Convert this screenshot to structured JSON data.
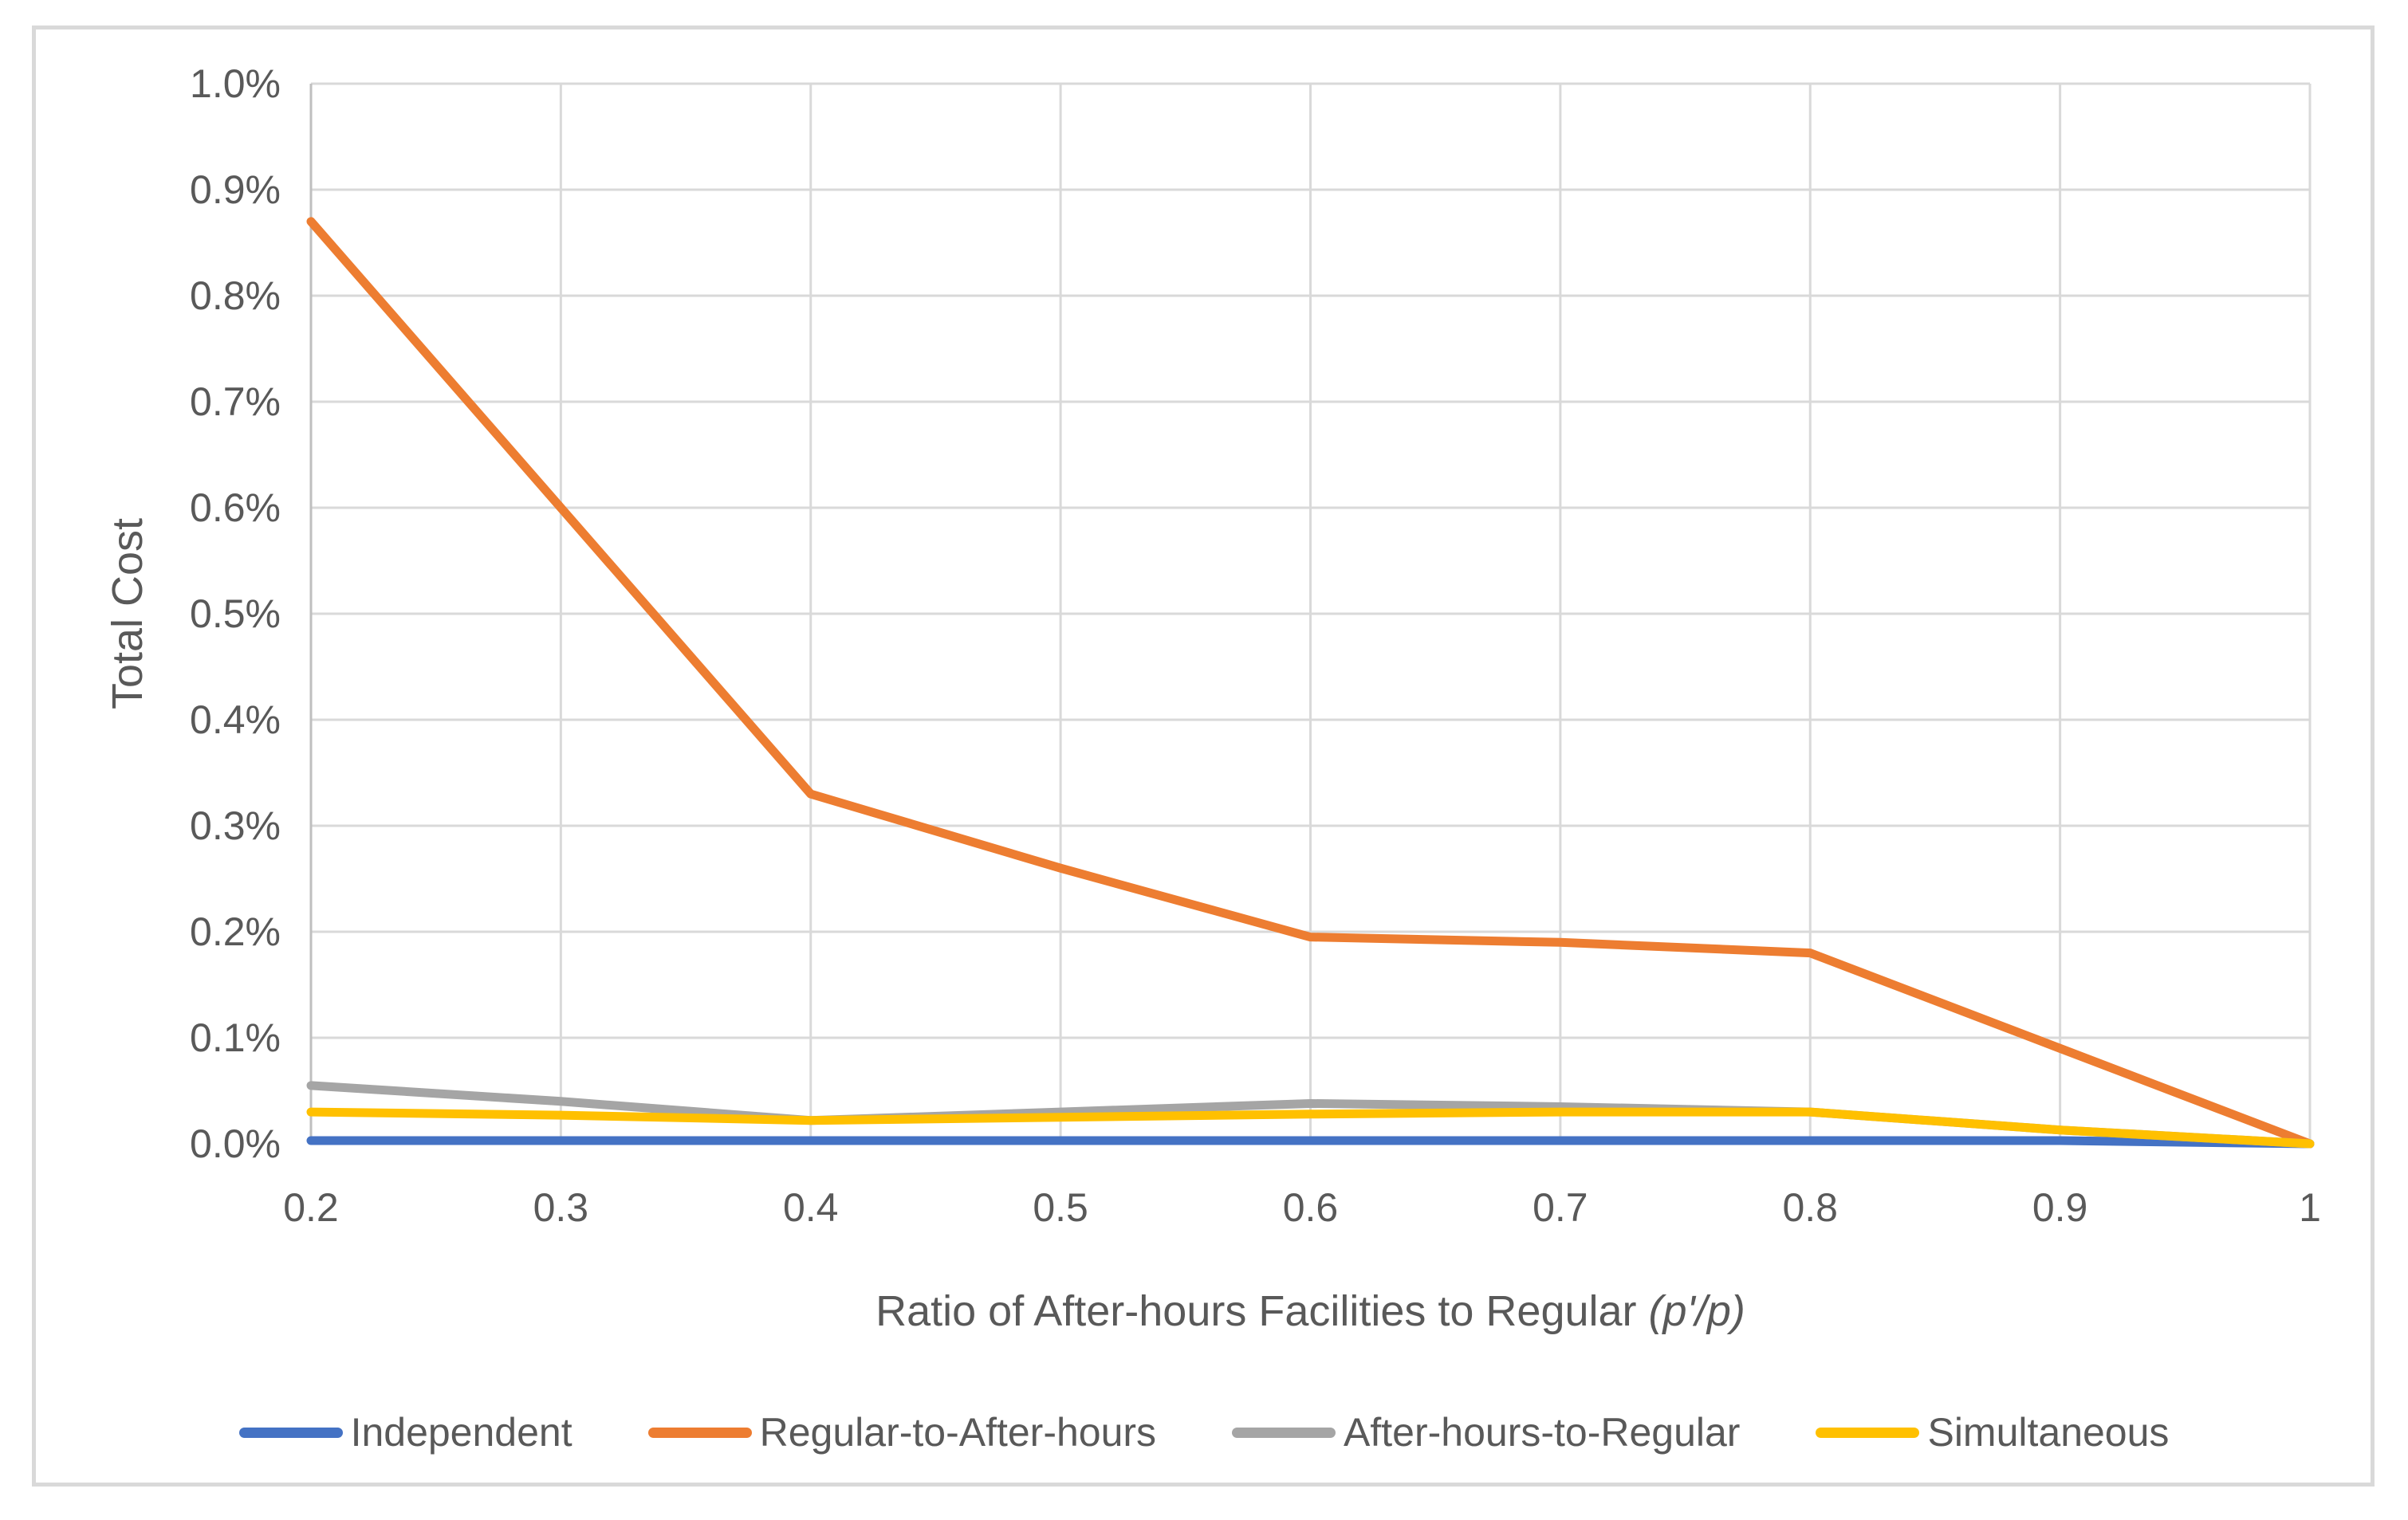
{
  "page": {
    "background_color": "#ffffff",
    "border_color": "#d9d9d9",
    "text_color": "#595959",
    "gridline_color": "#d9d9d9",
    "axis_line_color": "#bfbfbf"
  },
  "chart_data": {
    "type": "line",
    "title": "",
    "xlabel_text": "Ratio of After-hours Facilities to Regular ",
    "xlabel_math": "(p'/p)",
    "ylabel": "Total Cost",
    "x": [
      0.2,
      0.3,
      0.4,
      0.5,
      0.6,
      0.7,
      0.8,
      0.9,
      1.0
    ],
    "x_tick_labels": [
      "0.2",
      "0.3",
      "0.4",
      "0.5",
      "0.6",
      "0.7",
      "0.8",
      "0.9",
      "1"
    ],
    "y_tick_labels": [
      "0.0%",
      "0.1%",
      "0.2%",
      "0.3%",
      "0.4%",
      "0.5%",
      "0.6%",
      "0.7%",
      "0.8%",
      "0.9%",
      "1.0%"
    ],
    "xlim": [
      0.2,
      1.0
    ],
    "ylim_percent": [
      0.0,
      1.0
    ],
    "grid": true,
    "legend_position": "bottom",
    "series": [
      {
        "name": "Independent",
        "color": "#4472C4",
        "values_percent": [
          0.003,
          0.003,
          0.003,
          0.003,
          0.003,
          0.003,
          0.003,
          0.003,
          0.0
        ]
      },
      {
        "name": "Regular-to-After-hours",
        "color": "#ED7D31",
        "values_percent": [
          0.87,
          0.6,
          0.33,
          0.26,
          0.195,
          0.19,
          0.18,
          0.09,
          0.0
        ]
      },
      {
        "name": "After-hours-to-Regular",
        "color": "#A5A5A5",
        "values_percent": [
          0.055,
          0.04,
          0.022,
          0.03,
          0.038,
          0.035,
          0.03,
          0.013,
          0.0
        ]
      },
      {
        "name": "Simultaneous",
        "color": "#FFC000",
        "values_percent": [
          0.03,
          0.027,
          0.022,
          0.025,
          0.028,
          0.03,
          0.03,
          0.013,
          0.0
        ]
      }
    ]
  }
}
